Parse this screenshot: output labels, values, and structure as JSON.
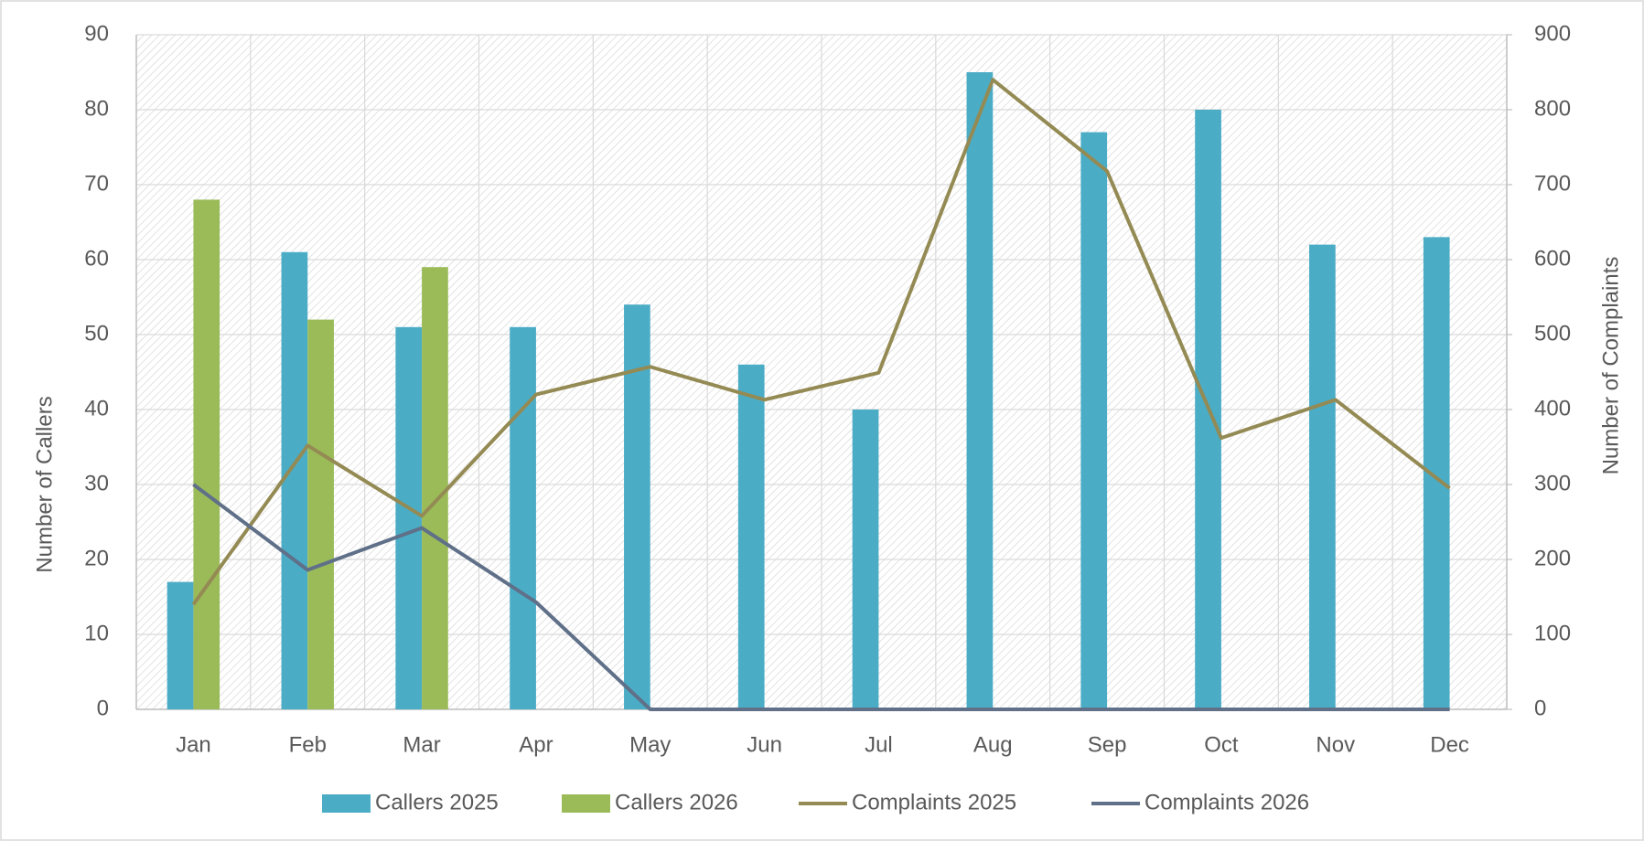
{
  "chart_data": {
    "type": "bar",
    "categories": [
      "Jan",
      "Feb",
      "Mar",
      "Apr",
      "May",
      "Jun",
      "Jul",
      "Aug",
      "Sep",
      "Oct",
      "Nov",
      "Dec"
    ],
    "y_label": "Number of Callers",
    "y2_label": "Number of Complaints",
    "ylim": [
      0,
      90
    ],
    "yticks": [
      0,
      10,
      20,
      30,
      40,
      50,
      60,
      70,
      80,
      90
    ],
    "y2lim": [
      0,
      900
    ],
    "y2ticks": [
      0,
      100,
      200,
      300,
      400,
      500,
      600,
      700,
      800,
      900
    ],
    "grid": true,
    "legend": "bottom",
    "series": [
      {
        "name": "Callers 2025",
        "type": "bar",
        "color": "#4bacc6",
        "values": [
          17,
          61,
          51,
          51,
          54,
          46,
          40,
          85,
          77,
          80,
          62,
          63
        ]
      },
      {
        "name": "Callers 2026",
        "type": "bar",
        "color": "#9bbb59",
        "values": [
          68,
          52,
          59,
          null,
          null,
          null,
          null,
          null,
          null,
          null,
          null,
          null
        ]
      },
      {
        "name": "Complaints 2025",
        "type": "line",
        "axis": "y2",
        "color": "#948a54",
        "values": [
          140,
          352,
          258,
          420,
          457,
          413,
          449,
          840,
          718,
          362,
          413,
          295
        ]
      },
      {
        "name": "Complaints 2026",
        "type": "line",
        "axis": "y2",
        "color": "#5f7088",
        "values": [
          300,
          186,
          242,
          143,
          0,
          0,
          0,
          0,
          0,
          0,
          0,
          0
        ]
      }
    ]
  }
}
